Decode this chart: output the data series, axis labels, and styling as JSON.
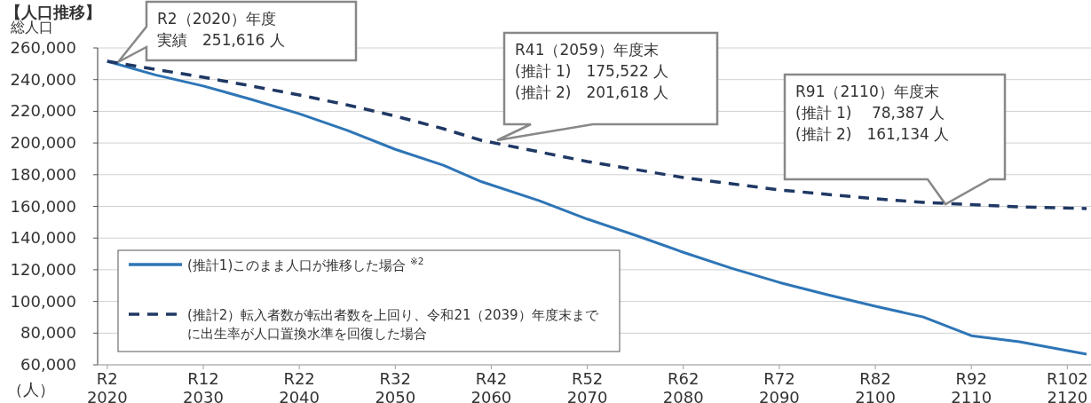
{
  "chart_data": {
    "type": "line",
    "title": "【人口推移】",
    "ylabel": "総人口",
    "x": [
      2020,
      2025,
      2030,
      2035,
      2040,
      2045,
      2050,
      2055,
      2059,
      2065,
      2070,
      2075,
      2080,
      2085,
      2090,
      2095,
      2100,
      2105,
      2110,
      2115,
      2122
    ],
    "series": [
      {
        "name": "(推計1)このまま人口が推移した場合 $^{※2}$",
        "color": "#2e75b6",
        "line_style": "solid",
        "values": [
          251616,
          243000,
          236000,
          227500,
          218500,
          208000,
          196000,
          186000,
          175522,
          163600,
          152000,
          141800,
          131000,
          121000,
          112000,
          104300,
          97000,
          90200,
          78387,
          74600,
          66700
        ]
      },
      {
        "name": "(推計2）転入者数が転出者数を上回り、令和21（2039）年度末までに出生率が人口置換水準を回復した場合",
        "color": "#1f3864",
        "line_style": "dashed",
        "values": [
          251616,
          246500,
          241500,
          236000,
          230300,
          224000,
          217000,
          209000,
          201618,
          194400,
          188300,
          183300,
          178200,
          174300,
          170400,
          167600,
          164800,
          162500,
          161134,
          159700,
          158600
        ]
      }
    ],
    "xlim": [
      2019,
      2122
    ],
    "xticks": [
      2020,
      2030,
      2040,
      2050,
      2060,
      2070,
      2080,
      2090,
      2100,
      2110,
      2120
    ],
    "ylim": [
      60000,
      260000
    ],
    "yticks": [
      {
        "value": 60000,
        "label": "60,000"
      },
      {
        "value": 80000,
        "label": "80,000"
      },
      {
        "value": 100000,
        "label": "100,000"
      },
      {
        "value": 120000,
        "label": "120,000"
      },
      {
        "value": 140000,
        "label": "140,000"
      },
      {
        "value": 160000,
        "label": "160,000"
      },
      {
        "value": 180000,
        "label": "180,000"
      },
      {
        "value": 200000,
        "label": "200,000"
      },
      {
        "value": 220000,
        "label": "220,000"
      },
      {
        "value": 240000,
        "label": "240,000"
      },
      {
        "value": 260000,
        "label": "260,000"
      }
    ],
    "grid": "y",
    "legend": "bottom left",
    "marker": "none",
    "annotations": [
      "R2（2020）年度",
      "実績　251,616 人",
      "R41（2059）年度末",
      "(推計 1)　175,522 人",
      "(推計 2)　201,618 人",
      "R91（2110）年度末",
      "(推計 1)　 78,387 人",
      "(推計 2)　161,134 人",
      "（人）",
      "R2",
      "R12",
      "R22",
      "R32",
      "R42",
      "R52",
      "R62",
      "R72",
      "R82",
      "R92",
      "R102"
    ]
  }
}
